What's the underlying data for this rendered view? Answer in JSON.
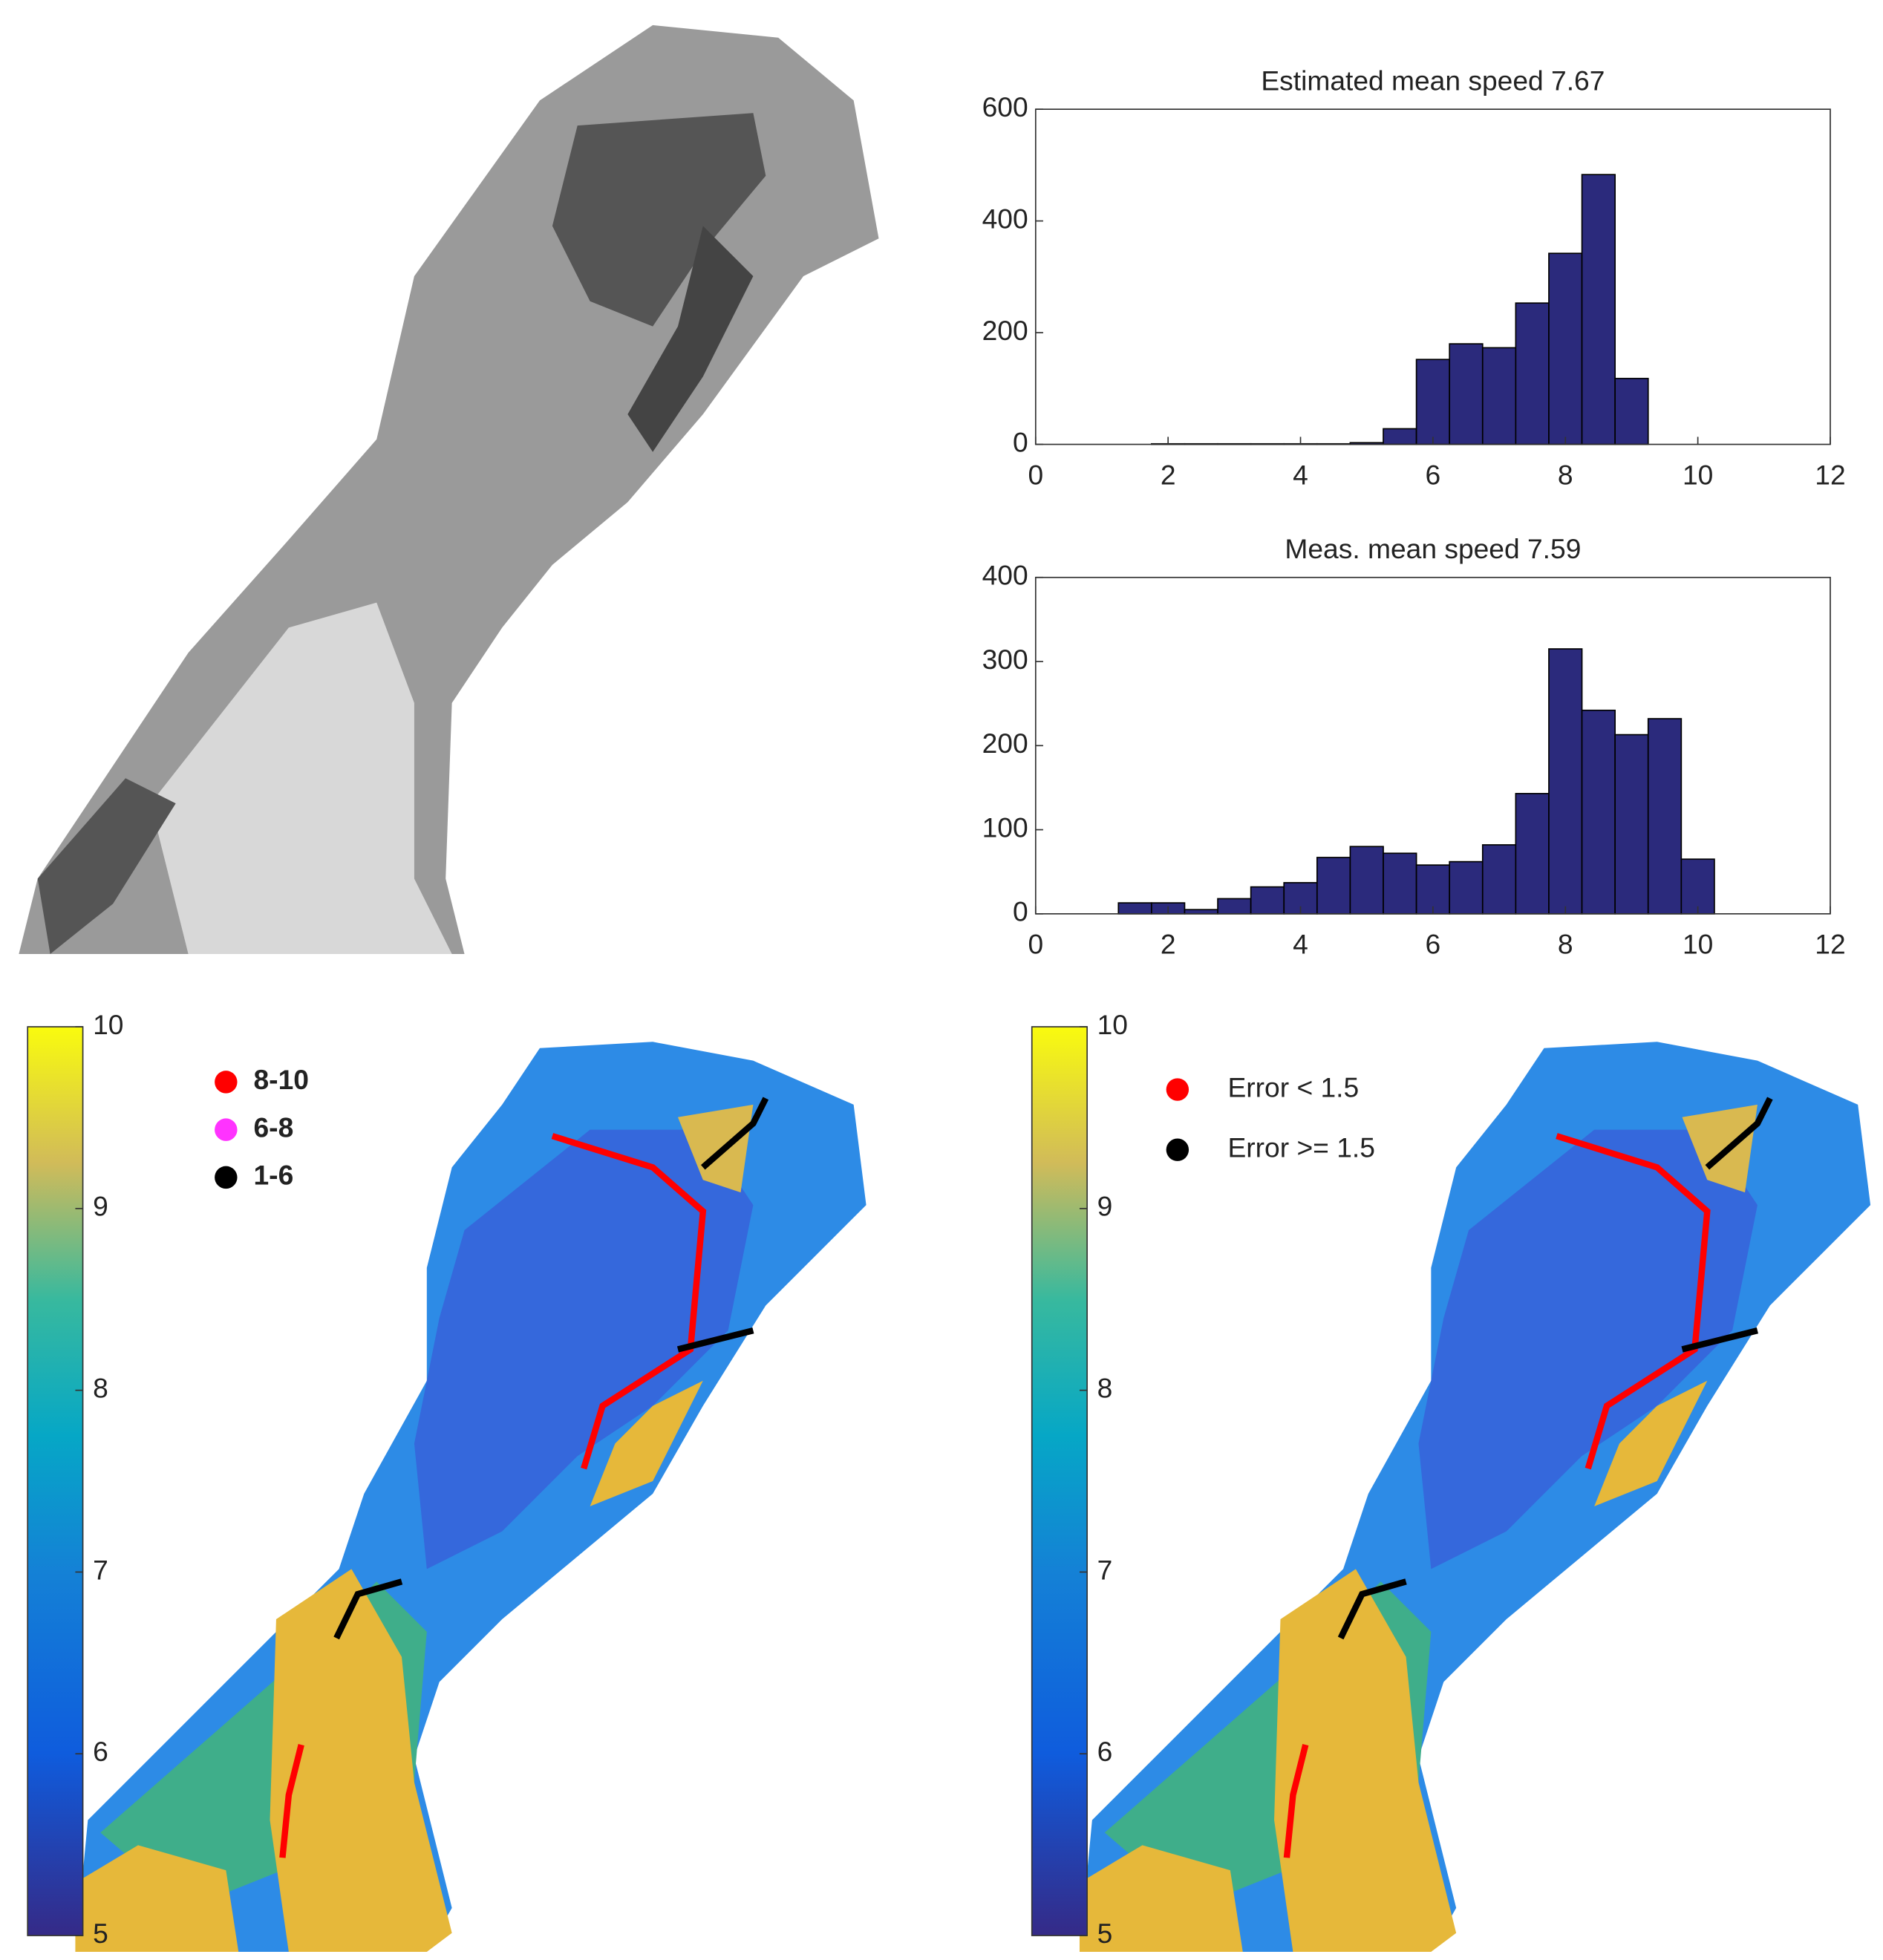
{
  "chart_data": [
    {
      "type": "histogram",
      "title": "Estimated mean speed  7.67",
      "color": "#2b2a7c",
      "bins": [
        0.25,
        0.75,
        1.25,
        1.75,
        2.25,
        2.75,
        3.25,
        3.75,
        4.25,
        4.75,
        5.25,
        5.75,
        6.25,
        6.75,
        7.25,
        7.75,
        8.25,
        8.75,
        9.25,
        9.75,
        10.25
      ],
      "values": [
        0,
        0,
        0,
        1,
        1,
        1,
        1,
        1,
        1,
        3,
        28,
        152,
        180,
        173,
        253,
        342,
        483,
        118,
        0,
        0
      ],
      "xlim": [
        0,
        12
      ],
      "xticks": [
        0,
        2,
        4,
        6,
        8,
        10,
        12
      ],
      "ylim": [
        0,
        600
      ],
      "yticks": [
        0,
        200,
        400,
        600
      ]
    },
    {
      "type": "histogram",
      "title": "Meas. mean speed  7.59",
      "color": "#2b2a7c",
      "bins": [
        1.25,
        1.75,
        2.25,
        2.75,
        3.25,
        3.75,
        4.25,
        4.75,
        5.25,
        5.75,
        6.25,
        6.75,
        7.25,
        7.75,
        8.25,
        8.75,
        9.25,
        9.75,
        10.25
      ],
      "values": [
        13,
        13,
        5,
        18,
        32,
        37,
        67,
        80,
        72,
        58,
        62,
        82,
        143,
        315,
        242,
        213,
        232,
        65
      ],
      "xlim": [
        0,
        12
      ],
      "xticks": [
        0,
        2,
        4,
        6,
        8,
        10,
        12
      ],
      "ylim": [
        0,
        400
      ],
      "yticks": [
        0,
        100,
        200,
        300,
        400
      ]
    },
    {
      "type": "map",
      "ylim": [
        5,
        10
      ],
      "yticks": [
        5,
        6,
        7,
        8,
        9,
        10
      ],
      "series": [
        {
          "name": "8-10",
          "color": "#ff0000"
        },
        {
          "name": "6-8",
          "color": "#ff33ff"
        },
        {
          "name": "1-6",
          "color": "#000000"
        }
      ]
    },
    {
      "type": "map",
      "ylim": [
        5,
        10
      ],
      "yticks": [
        5,
        6,
        7,
        8,
        9,
        10
      ],
      "series": [
        {
          "name": "Error < 1.5",
          "color": "#ff0000"
        },
        {
          "name": "Error >= 1.5",
          "color": "#000000"
        }
      ]
    }
  ]
}
